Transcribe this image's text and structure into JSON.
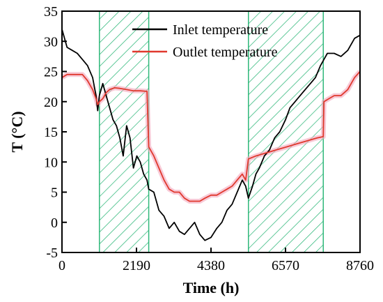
{
  "chart_data": {
    "type": "line",
    "xlabel": "Time (h)",
    "ylabel": "T (°C)",
    "xlim": [
      0,
      8760
    ],
    "ylim": [
      -5,
      35
    ],
    "x_ticks": [
      0,
      2190,
      4380,
      6570,
      8760
    ],
    "y_ticks": [
      -5,
      0,
      5,
      10,
      15,
      20,
      25,
      30,
      35
    ],
    "grid": false,
    "legend_position": "top-center",
    "shaded_regions": [
      {
        "x_start": 1100,
        "x_end": 2550,
        "color": "#2fb87a",
        "pattern": "diagonal-hatch"
      },
      {
        "x_start": 5480,
        "x_end": 7680,
        "color": "#2fb87a",
        "pattern": "diagonal-hatch"
      }
    ],
    "series": [
      {
        "name": "Inlet temperature",
        "color": "#000000",
        "points": [
          [
            0,
            32
          ],
          [
            150,
            29
          ],
          [
            300,
            28.5
          ],
          [
            450,
            28
          ],
          [
            600,
            27
          ],
          [
            750,
            26
          ],
          [
            900,
            24
          ],
          [
            1000,
            21
          ],
          [
            1050,
            18.5
          ],
          [
            1100,
            21
          ],
          [
            1200,
            23
          ],
          [
            1300,
            21
          ],
          [
            1400,
            19
          ],
          [
            1500,
            17
          ],
          [
            1600,
            16
          ],
          [
            1700,
            14
          ],
          [
            1800,
            11
          ],
          [
            1900,
            16
          ],
          [
            2000,
            14
          ],
          [
            2100,
            9
          ],
          [
            2200,
            11
          ],
          [
            2300,
            10
          ],
          [
            2400,
            8
          ],
          [
            2500,
            7
          ],
          [
            2550,
            5.5
          ],
          [
            2700,
            5
          ],
          [
            2850,
            2
          ],
          [
            3000,
            1
          ],
          [
            3150,
            -1
          ],
          [
            3300,
            0
          ],
          [
            3450,
            -1.5
          ],
          [
            3600,
            -2
          ],
          [
            3750,
            -1
          ],
          [
            3900,
            0
          ],
          [
            4050,
            -2
          ],
          [
            4200,
            -3
          ],
          [
            4380,
            -2.5
          ],
          [
            4550,
            -1
          ],
          [
            4700,
            0
          ],
          [
            4850,
            2
          ],
          [
            5000,
            3
          ],
          [
            5150,
            5
          ],
          [
            5300,
            7
          ],
          [
            5400,
            6
          ],
          [
            5480,
            4
          ],
          [
            5600,
            6
          ],
          [
            5700,
            8
          ],
          [
            5800,
            9
          ],
          [
            5950,
            11
          ],
          [
            6100,
            12
          ],
          [
            6250,
            14
          ],
          [
            6400,
            15
          ],
          [
            6570,
            17
          ],
          [
            6700,
            19
          ],
          [
            6850,
            20
          ],
          [
            7000,
            21
          ],
          [
            7150,
            22
          ],
          [
            7300,
            23
          ],
          [
            7450,
            24
          ],
          [
            7600,
            26
          ],
          [
            7700,
            27
          ],
          [
            7800,
            28
          ],
          [
            8000,
            28
          ],
          [
            8200,
            27.5
          ],
          [
            8400,
            28.5
          ],
          [
            8600,
            30.5
          ],
          [
            8760,
            31
          ]
        ]
      },
      {
        "name": "Outlet temperature",
        "color": "#e0392e",
        "points": [
          [
            0,
            24
          ],
          [
            150,
            24.5
          ],
          [
            300,
            24.5
          ],
          [
            450,
            24.5
          ],
          [
            600,
            24.5
          ],
          [
            750,
            23.5
          ],
          [
            900,
            22
          ],
          [
            1000,
            20.5
          ],
          [
            1050,
            19.5
          ],
          [
            1100,
            20
          ],
          [
            1200,
            20.5
          ],
          [
            1300,
            21.5
          ],
          [
            1400,
            22
          ],
          [
            1550,
            22.3
          ],
          [
            1700,
            22.2
          ],
          [
            1900,
            22
          ],
          [
            2100,
            21.8
          ],
          [
            2300,
            21.8
          ],
          [
            2500,
            21.7
          ],
          [
            2550,
            12.5
          ],
          [
            2700,
            11
          ],
          [
            2850,
            9
          ],
          [
            3000,
            7
          ],
          [
            3150,
            5.5
          ],
          [
            3300,
            5
          ],
          [
            3450,
            5
          ],
          [
            3600,
            4
          ],
          [
            3750,
            3.5
          ],
          [
            3900,
            3.5
          ],
          [
            4050,
            3.5
          ],
          [
            4200,
            4
          ],
          [
            4380,
            4.5
          ],
          [
            4550,
            4.5
          ],
          [
            4700,
            5
          ],
          [
            4850,
            5.5
          ],
          [
            5000,
            6
          ],
          [
            5150,
            7
          ],
          [
            5300,
            8
          ],
          [
            5400,
            7
          ],
          [
            5480,
            10.5
          ],
          [
            5700,
            11
          ],
          [
            6000,
            11.5
          ],
          [
            6300,
            12
          ],
          [
            6600,
            12.5
          ],
          [
            6900,
            13
          ],
          [
            7200,
            13.5
          ],
          [
            7500,
            14
          ],
          [
            7680,
            14.2
          ],
          [
            7700,
            20
          ],
          [
            7850,
            20.5
          ],
          [
            8000,
            21
          ],
          [
            8200,
            21
          ],
          [
            8400,
            22
          ],
          [
            8600,
            24
          ],
          [
            8760,
            25
          ]
        ]
      }
    ]
  }
}
